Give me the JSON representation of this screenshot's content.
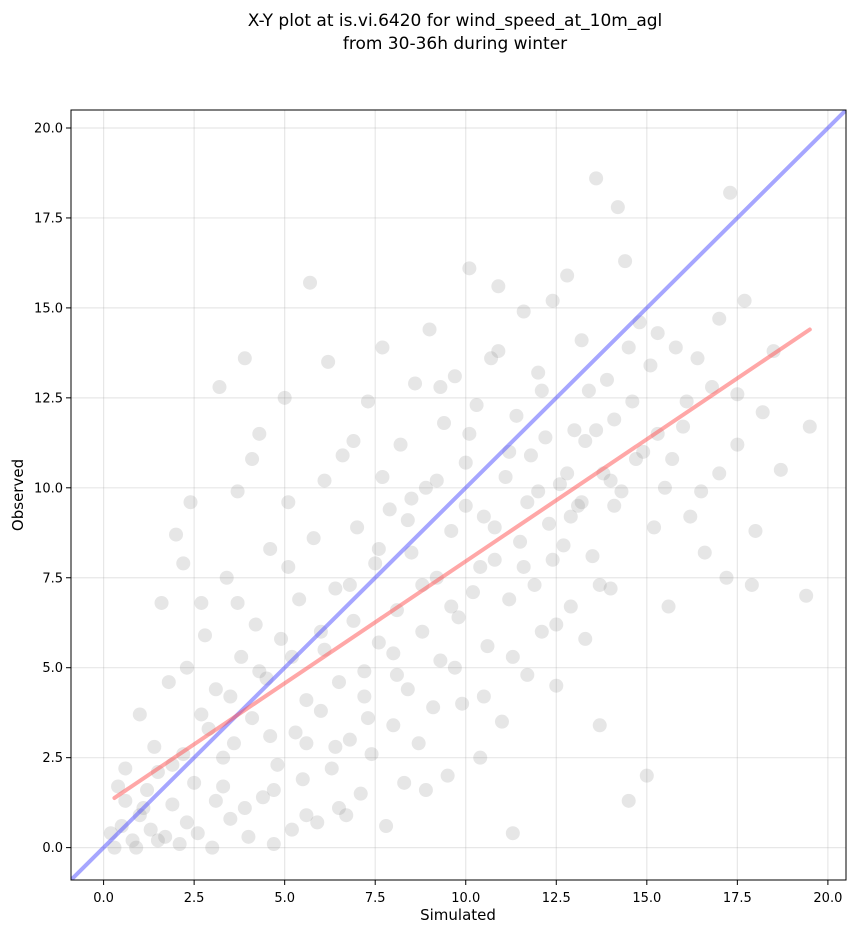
{
  "chart_data": {
    "type": "scatter",
    "title": "X-Y plot at is.vi.6420 for wind_speed_at_10m_agl",
    "subtitle": "from 30-36h during winter",
    "xlabel": "Simulated",
    "ylabel": "Observed",
    "xlim": [
      -0.9,
      20.5
    ],
    "ylim": [
      -0.9,
      20.5
    ],
    "xticks": [
      0.0,
      2.5,
      5.0,
      7.5,
      10.0,
      12.5,
      15.0,
      17.5,
      20.0
    ],
    "yticks": [
      0.0,
      2.5,
      5.0,
      7.5,
      10.0,
      12.5,
      15.0,
      17.5,
      20.0
    ],
    "xtick_labels": [
      "0.0",
      "2.5",
      "5.0",
      "7.5",
      "10.0",
      "12.5",
      "15.0",
      "17.5",
      "20.0"
    ],
    "ytick_labels": [
      "0.0",
      "2.5",
      "5.0",
      "7.5",
      "10.0",
      "12.5",
      "15.0",
      "17.5",
      "20.0"
    ],
    "grid": true,
    "point_color": "#808080",
    "point_opacity": 0.2,
    "series": [
      {
        "points": [
          [
            0.3,
            0.0
          ],
          [
            0.5,
            0.6
          ],
          [
            0.6,
            1.3
          ],
          [
            0.8,
            0.2
          ],
          [
            1.0,
            0.9
          ],
          [
            1.0,
            3.7
          ],
          [
            1.2,
            1.6
          ],
          [
            1.3,
            0.5
          ],
          [
            1.5,
            2.1
          ],
          [
            1.6,
            6.8
          ],
          [
            1.7,
            0.3
          ],
          [
            1.9,
            1.2
          ],
          [
            2.0,
            8.7
          ],
          [
            2.1,
            0.1
          ],
          [
            2.2,
            2.6
          ],
          [
            2.3,
            5.0
          ],
          [
            2.4,
            9.6
          ],
          [
            2.5,
            1.8
          ],
          [
            2.6,
            0.4
          ],
          [
            2.7,
            6.8
          ],
          [
            2.9,
            3.3
          ],
          [
            3.0,
            0.0
          ],
          [
            3.1,
            4.4
          ],
          [
            3.2,
            12.8
          ],
          [
            3.3,
            1.7
          ],
          [
            3.4,
            7.5
          ],
          [
            3.5,
            0.8
          ],
          [
            3.6,
            2.9
          ],
          [
            3.7,
            9.9
          ],
          [
            3.8,
            5.3
          ],
          [
            3.9,
            13.6
          ],
          [
            4.0,
            0.3
          ],
          [
            4.1,
            3.6
          ],
          [
            4.2,
            6.2
          ],
          [
            4.3,
            11.5
          ],
          [
            4.4,
            1.4
          ],
          [
            4.5,
            4.7
          ],
          [
            4.6,
            8.3
          ],
          [
            4.7,
            0.1
          ],
          [
            4.8,
            2.3
          ],
          [
            4.9,
            5.8
          ],
          [
            5.0,
            12.5
          ],
          [
            5.1,
            9.6
          ],
          [
            5.2,
            0.5
          ],
          [
            5.3,
            3.2
          ],
          [
            5.4,
            6.9
          ],
          [
            5.5,
            1.9
          ],
          [
            5.6,
            4.1
          ],
          [
            5.7,
            15.7
          ],
          [
            5.8,
            8.6
          ],
          [
            5.9,
            0.7
          ],
          [
            6.0,
            3.8
          ],
          [
            6.1,
            5.5
          ],
          [
            6.2,
            13.5
          ],
          [
            6.3,
            2.2
          ],
          [
            6.4,
            7.2
          ],
          [
            6.5,
            4.6
          ],
          [
            6.6,
            10.9
          ],
          [
            6.7,
            0.9
          ],
          [
            6.8,
            3.0
          ],
          [
            6.9,
            6.3
          ],
          [
            7.0,
            8.9
          ],
          [
            7.1,
            1.5
          ],
          [
            7.2,
            4.9
          ],
          [
            7.3,
            12.4
          ],
          [
            7.4,
            2.6
          ],
          [
            7.5,
            7.9
          ],
          [
            7.6,
            5.7
          ],
          [
            7.7,
            13.9
          ],
          [
            7.8,
            0.6
          ],
          [
            7.9,
            9.4
          ],
          [
            8.0,
            3.4
          ],
          [
            8.1,
            6.6
          ],
          [
            8.2,
            11.2
          ],
          [
            8.3,
            1.8
          ],
          [
            8.4,
            4.4
          ],
          [
            8.5,
            8.2
          ],
          [
            8.6,
            12.9
          ],
          [
            8.7,
            2.9
          ],
          [
            8.8,
            6.0
          ],
          [
            8.9,
            10.0
          ],
          [
            9.0,
            14.4
          ],
          [
            9.1,
            3.9
          ],
          [
            9.2,
            7.5
          ],
          [
            9.3,
            5.2
          ],
          [
            9.4,
            11.8
          ],
          [
            9.5,
            2.0
          ],
          [
            9.6,
            8.8
          ],
          [
            9.7,
            13.1
          ],
          [
            9.8,
            6.4
          ],
          [
            9.9,
            4.0
          ],
          [
            10.0,
            10.7
          ],
          [
            10.1,
            16.1
          ],
          [
            10.2,
            7.1
          ],
          [
            10.3,
            12.3
          ],
          [
            10.4,
            2.5
          ],
          [
            10.5,
            9.2
          ],
          [
            10.6,
            5.6
          ],
          [
            10.7,
            13.6
          ],
          [
            10.8,
            8.0
          ],
          [
            10.9,
            15.6
          ],
          [
            11.0,
            3.5
          ],
          [
            11.1,
            10.3
          ],
          [
            11.2,
            6.9
          ],
          [
            11.3,
            0.4
          ],
          [
            11.4,
            12.0
          ],
          [
            11.5,
            8.5
          ],
          [
            11.6,
            14.9
          ],
          [
            11.7,
            4.8
          ],
          [
            11.8,
            10.9
          ],
          [
            11.9,
            7.3
          ],
          [
            12.0,
            13.2
          ],
          [
            12.1,
            6.0
          ],
          [
            12.2,
            11.4
          ],
          [
            12.3,
            9.0
          ],
          [
            12.4,
            15.2
          ],
          [
            12.5,
            4.5
          ],
          [
            12.6,
            10.1
          ],
          [
            12.7,
            8.4
          ],
          [
            12.8,
            15.9
          ],
          [
            12.9,
            6.7
          ],
          [
            13.0,
            11.6
          ],
          [
            13.1,
            9.5
          ],
          [
            13.2,
            14.1
          ],
          [
            13.3,
            5.8
          ],
          [
            13.4,
            12.7
          ],
          [
            13.5,
            8.1
          ],
          [
            13.6,
            18.6
          ],
          [
            13.7,
            3.4
          ],
          [
            13.8,
            10.4
          ],
          [
            13.9,
            13.0
          ],
          [
            14.0,
            7.2
          ],
          [
            14.1,
            11.9
          ],
          [
            14.2,
            17.8
          ],
          [
            14.3,
            9.9
          ],
          [
            14.4,
            16.3
          ],
          [
            14.5,
            1.3
          ],
          [
            14.6,
            12.4
          ],
          [
            14.7,
            10.8
          ],
          [
            14.8,
            14.6
          ],
          [
            15.0,
            2.0
          ],
          [
            15.1,
            13.4
          ],
          [
            15.2,
            8.9
          ],
          [
            15.3,
            11.5
          ],
          [
            15.5,
            10.0
          ],
          [
            15.6,
            6.7
          ],
          [
            15.8,
            13.9
          ],
          [
            16.0,
            11.7
          ],
          [
            16.2,
            9.2
          ],
          [
            16.4,
            13.6
          ],
          [
            16.6,
            8.2
          ],
          [
            16.8,
            12.8
          ],
          [
            17.0,
            14.7
          ],
          [
            17.2,
            7.5
          ],
          [
            17.3,
            18.2
          ],
          [
            17.5,
            11.2
          ],
          [
            17.7,
            15.2
          ],
          [
            17.9,
            7.3
          ],
          [
            18.2,
            12.1
          ],
          [
            18.5,
            13.8
          ],
          [
            18.7,
            10.5
          ],
          [
            19.4,
            7.0
          ],
          [
            19.5,
            11.7
          ],
          [
            0.4,
            1.7
          ],
          [
            0.9,
            0.0
          ],
          [
            1.4,
            2.8
          ],
          [
            1.8,
            4.6
          ],
          [
            2.2,
            7.9
          ],
          [
            2.8,
            5.9
          ],
          [
            3.3,
            2.5
          ],
          [
            3.7,
            6.8
          ],
          [
            4.1,
            10.8
          ],
          [
            4.6,
            3.1
          ],
          [
            5.1,
            7.8
          ],
          [
            5.6,
            2.9
          ],
          [
            6.1,
            10.2
          ],
          [
            6.5,
            1.1
          ],
          [
            6.9,
            11.3
          ],
          [
            7.3,
            3.6
          ],
          [
            7.7,
            10.3
          ],
          [
            8.1,
            4.8
          ],
          [
            8.5,
            9.7
          ],
          [
            8.9,
            1.6
          ],
          [
            9.3,
            12.8
          ],
          [
            9.7,
            5.0
          ],
          [
            10.1,
            11.5
          ],
          [
            10.5,
            4.2
          ],
          [
            10.9,
            13.8
          ],
          [
            11.3,
            5.3
          ],
          [
            11.7,
            9.6
          ],
          [
            12.1,
            12.7
          ],
          [
            12.5,
            6.2
          ],
          [
            12.9,
            9.2
          ],
          [
            13.3,
            11.3
          ],
          [
            13.7,
            7.3
          ],
          [
            14.1,
            9.5
          ],
          [
            14.5,
            13.9
          ],
          [
            14.9,
            11.0
          ],
          [
            15.3,
            14.3
          ],
          [
            15.7,
            10.8
          ],
          [
            16.1,
            12.4
          ],
          [
            16.5,
            9.9
          ],
          [
            17.0,
            10.4
          ],
          [
            17.5,
            12.6
          ],
          [
            18.0,
            8.8
          ],
          [
            0.2,
            0.4
          ],
          [
            0.6,
            2.2
          ],
          [
            1.1,
            1.1
          ],
          [
            1.5,
            0.2
          ],
          [
            1.9,
            2.3
          ],
          [
            2.3,
            0.7
          ],
          [
            2.7,
            3.7
          ],
          [
            3.1,
            1.3
          ],
          [
            3.5,
            4.2
          ],
          [
            3.9,
            1.1
          ],
          [
            4.3,
            4.9
          ],
          [
            4.7,
            1.6
          ],
          [
            5.2,
            5.3
          ],
          [
            5.6,
            0.9
          ],
          [
            6.0,
            6.0
          ],
          [
            6.4,
            2.8
          ],
          [
            6.8,
            7.3
          ],
          [
            7.2,
            4.2
          ],
          [
            7.6,
            8.3
          ],
          [
            8.0,
            5.4
          ],
          [
            8.4,
            9.1
          ],
          [
            8.8,
            7.3
          ],
          [
            9.2,
            10.2
          ],
          [
            9.6,
            6.7
          ],
          [
            10.0,
            9.5
          ],
          [
            10.4,
            7.8
          ],
          [
            10.8,
            8.9
          ],
          [
            11.2,
            11.0
          ],
          [
            11.6,
            7.8
          ],
          [
            12.0,
            9.9
          ],
          [
            12.4,
            8.0
          ],
          [
            12.8,
            10.4
          ],
          [
            13.2,
            9.6
          ],
          [
            13.6,
            11.6
          ],
          [
            14.0,
            10.2
          ]
        ]
      }
    ],
    "lines": [
      {
        "name": "",
        "color": "#4d4dff",
        "opacity": 0.5,
        "x": [
          -0.9,
          20.5
        ],
        "y": [
          -0.9,
          20.5
        ]
      },
      {
        "name": "",
        "color": "#ff5050",
        "opacity": 0.5,
        "x": [
          0.3,
          19.5
        ],
        "y": [
          1.38,
          14.4
        ]
      }
    ]
  }
}
